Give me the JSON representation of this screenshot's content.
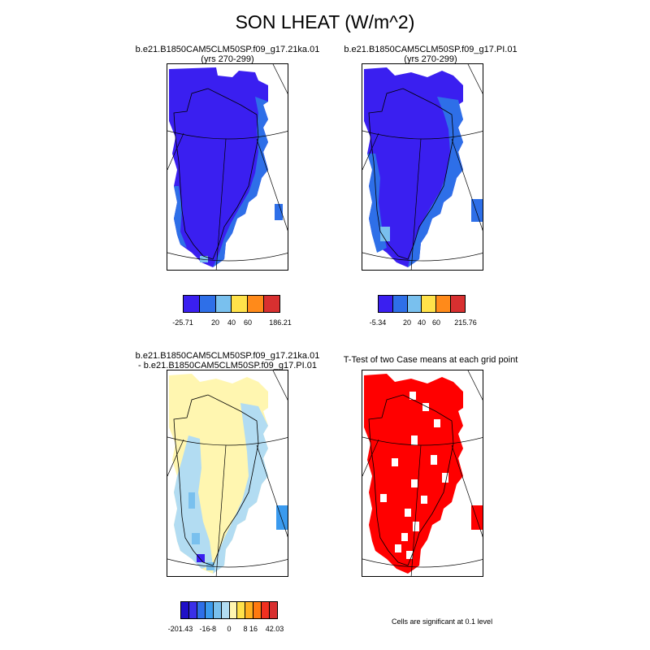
{
  "figure": {
    "title": "SON LHEAT (W/m^2)"
  },
  "panels": [
    {
      "id": "top-left",
      "title_line1": "b.e21.B1850CAM5CLM50SP.f09_g17.21ka.01",
      "title_line2": "(yrs 270-299)"
    },
    {
      "id": "top-right",
      "title_line1": "b.e21.B1850CAM5CLM50SP.f09_g17.PI.01",
      "title_line2": "(yrs 270-299)"
    },
    {
      "id": "bottom-left",
      "title_line1": "b.e21.B1850CAM5CLM50SP.f09_g17.21ka.01",
      "title_line2": "- b.e21.B1850CAM5CLM50SP.f09_g17.PI.01"
    },
    {
      "id": "bottom-right",
      "title_line1": "T-Test of two Case means at each grid point",
      "title_line2": ""
    }
  ],
  "colorbars": {
    "top_left": {
      "colors": [
        "#3a1ff0",
        "#2e6fe8",
        "#79c0ee",
        "#ffe24a",
        "#ff8a1a",
        "#d83030"
      ],
      "labels": [
        "-25.71",
        "20",
        "40",
        "60",
        "186.21"
      ]
    },
    "top_right": {
      "colors": [
        "#3a1ff0",
        "#2e6fe8",
        "#79c0ee",
        "#ffe24a",
        "#ff8a1a",
        "#d83030"
      ],
      "labels": [
        "-5.34",
        "20",
        "40",
        "60",
        "215.76"
      ]
    },
    "bottom_left": {
      "colors": [
        "#2010c8",
        "#3a30e8",
        "#2e6fe8",
        "#3a9aee",
        "#79c0ee",
        "#b2dcf2",
        "#fff6b0",
        "#ffe24a",
        "#ffb020",
        "#ff7a10",
        "#f03020",
        "#d83030"
      ],
      "labels": [
        "-201.43",
        "-16",
        "-8",
        "0",
        "8",
        "16",
        "42.03"
      ]
    }
  },
  "significance_note": "Cells are significant at 0.1 level",
  "map_colors": {
    "dark_blue": "#3a1ff0",
    "mid_blue": "#2e6fe8",
    "light_blue": "#79c0ee",
    "pale_blue": "#b2dcf2",
    "pale_yellow": "#fff6b0",
    "sig_red": "#ff0000"
  }
}
